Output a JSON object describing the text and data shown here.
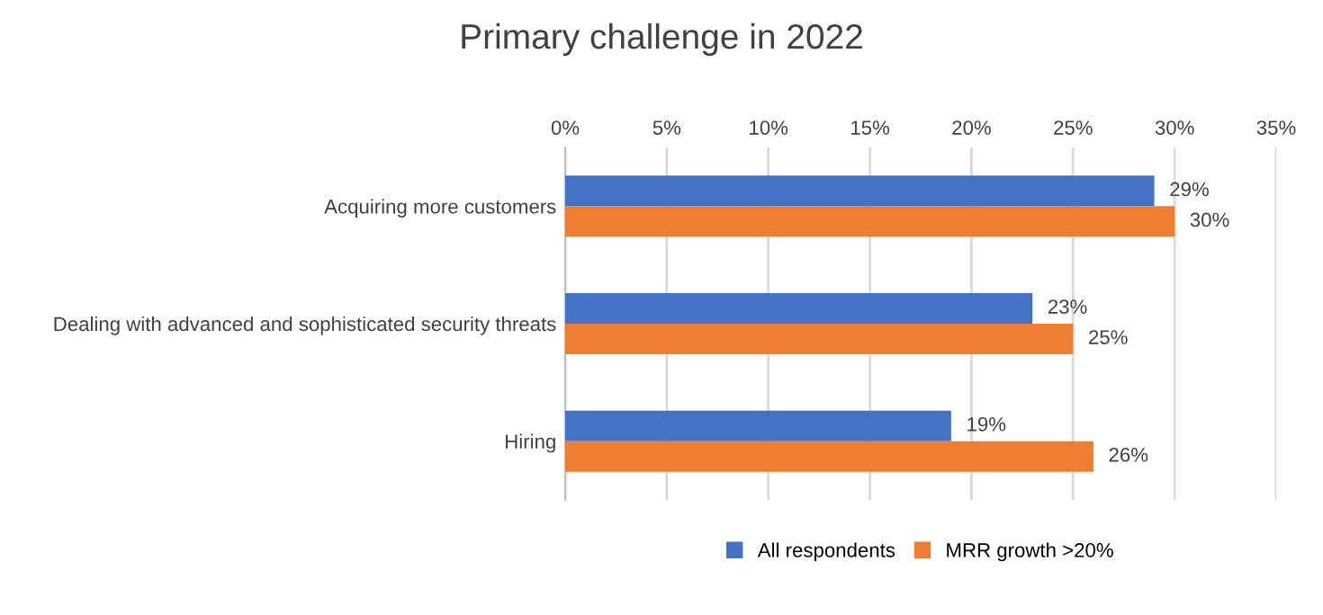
{
  "chart_data": {
    "type": "bar",
    "orientation": "horizontal",
    "title": "Primary challenge in 2022",
    "categories": [
      "Acquiring more customers",
      "Dealing with advanced and sophisticated security threats",
      "Hiring"
    ],
    "series": [
      {
        "name": "All respondents",
        "color": "#4472c4",
        "values": [
          29,
          23,
          19
        ],
        "value_labels": [
          "29%",
          "23%",
          "19%"
        ]
      },
      {
        "name": "MRR growth >20%",
        "color": "#ed7d31",
        "values": [
          30,
          25,
          26
        ],
        "value_labels": [
          "30%",
          "25%",
          "26%"
        ]
      }
    ],
    "xlim": [
      0,
      35
    ],
    "xticks": [
      {
        "value": 0,
        "label": "0%"
      },
      {
        "value": 5,
        "label": "5%"
      },
      {
        "value": 10,
        "label": "10%"
      },
      {
        "value": 15,
        "label": "15%"
      },
      {
        "value": 20,
        "label": "20%"
      },
      {
        "value": 25,
        "label": "25%"
      },
      {
        "value": 30,
        "label": "30%"
      },
      {
        "value": 35,
        "label": "35%"
      }
    ],
    "grid": "x",
    "legend": "bottom"
  }
}
